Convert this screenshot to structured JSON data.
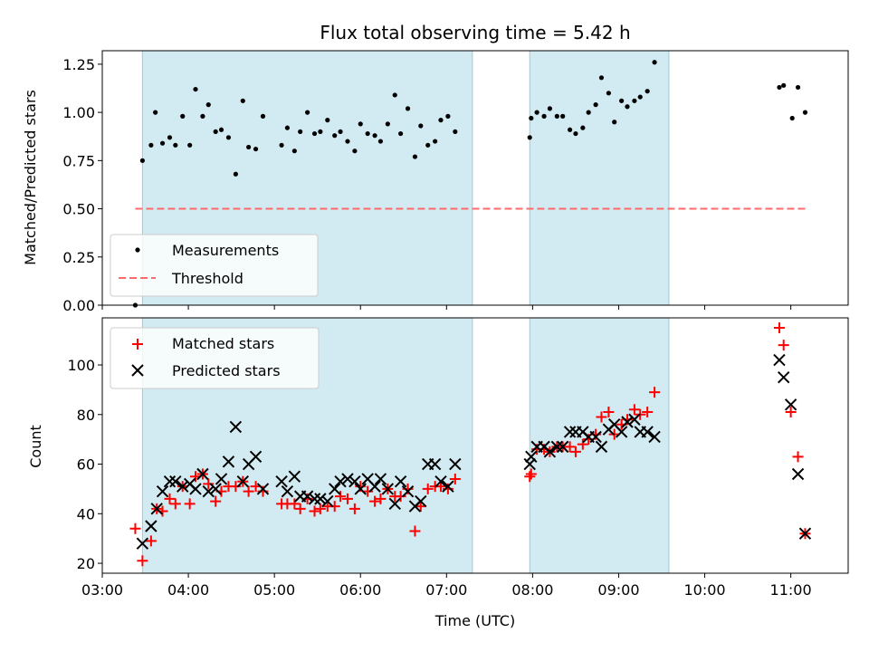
{
  "chart_data": [
    {
      "type": "scatter",
      "title": "Flux total observing time = 5.42 h",
      "xlabel": "",
      "ylabel": "Matched/Predicted stars",
      "xlim": [
        "03:00",
        "11:40"
      ],
      "ylim": [
        0,
        1.32
      ],
      "yticks": [
        "0.00",
        "0.25",
        "0.50",
        "0.75",
        "1.00",
        "1.25"
      ],
      "shaded_intervals": [
        [
          "03:28",
          "07:18"
        ],
        [
          "07:58",
          "09:35"
        ]
      ],
      "shade_color": "#add8e6",
      "legend": {
        "position": "lower-left",
        "entries": [
          "Measurements",
          "Threshold"
        ]
      },
      "series": [
        {
          "name": "Measurements",
          "marker": "dot",
          "color": "#000000",
          "points": [
            [
              "03:23",
              0.0
            ],
            [
              "03:28",
              0.75
            ],
            [
              "03:34",
              0.83
            ],
            [
              "03:37",
              1.0
            ],
            [
              "03:42",
              0.84
            ],
            [
              "03:47",
              0.87
            ],
            [
              "03:51",
              0.83
            ],
            [
              "03:56",
              0.98
            ],
            [
              "04:01",
              0.83
            ],
            [
              "04:05",
              1.12
            ],
            [
              "04:10",
              0.98
            ],
            [
              "04:14",
              1.04
            ],
            [
              "04:19",
              0.9
            ],
            [
              "04:23",
              0.91
            ],
            [
              "04:28",
              0.87
            ],
            [
              "04:33",
              0.68
            ],
            [
              "04:38",
              1.06
            ],
            [
              "04:42",
              0.82
            ],
            [
              "04:47",
              0.81
            ],
            [
              "04:52",
              0.98
            ],
            [
              "05:05",
              0.83
            ],
            [
              "05:09",
              0.92
            ],
            [
              "05:14",
              0.8
            ],
            [
              "05:18",
              0.9
            ],
            [
              "05:23",
              1.0
            ],
            [
              "05:28",
              0.89
            ],
            [
              "05:32",
              0.9
            ],
            [
              "05:37",
              0.96
            ],
            [
              "05:42",
              0.88
            ],
            [
              "05:46",
              0.9
            ],
            [
              "05:51",
              0.85
            ],
            [
              "05:56",
              0.8
            ],
            [
              "06:00",
              0.94
            ],
            [
              "06:05",
              0.89
            ],
            [
              "06:10",
              0.88
            ],
            [
              "06:14",
              0.85
            ],
            [
              "06:19",
              0.94
            ],
            [
              "06:24",
              1.09
            ],
            [
              "06:28",
              0.89
            ],
            [
              "06:33",
              1.02
            ],
            [
              "06:38",
              0.77
            ],
            [
              "06:42",
              0.93
            ],
            [
              "06:47",
              0.83
            ],
            [
              "06:52",
              0.85
            ],
            [
              "06:56",
              0.96
            ],
            [
              "07:01",
              0.98
            ],
            [
              "07:06",
              0.9
            ],
            [
              "07:58",
              0.87
            ],
            [
              "07:59",
              0.97
            ],
            [
              "08:03",
              1.0
            ],
            [
              "08:08",
              0.98
            ],
            [
              "08:12",
              1.02
            ],
            [
              "08:17",
              0.98
            ],
            [
              "08:21",
              0.98
            ],
            [
              "08:26",
              0.91
            ],
            [
              "08:30",
              0.89
            ],
            [
              "08:35",
              0.92
            ],
            [
              "08:39",
              1.0
            ],
            [
              "08:44",
              1.04
            ],
            [
              "08:48",
              1.18
            ],
            [
              "08:53",
              1.1
            ],
            [
              "08:57",
              0.95
            ],
            [
              "09:02",
              1.06
            ],
            [
              "09:06",
              1.03
            ],
            [
              "09:11",
              1.06
            ],
            [
              "09:15",
              1.08
            ],
            [
              "09:20",
              1.11
            ],
            [
              "09:25",
              1.26
            ],
            [
              "10:52",
              1.13
            ],
            [
              "10:55",
              1.14
            ],
            [
              "11:01",
              0.97
            ],
            [
              "11:05",
              1.13
            ],
            [
              "11:10",
              1.0
            ]
          ]
        },
        {
          "name": "Threshold",
          "style": "dashed",
          "color": "#ff6b6b",
          "points": [
            [
              "03:23",
              0.5
            ],
            [
              "11:10",
              0.5
            ]
          ]
        }
      ]
    },
    {
      "type": "scatter",
      "title": "",
      "xlabel": "Time (UTC)",
      "ylabel": "Count",
      "xticks": [
        "03:00",
        "04:00",
        "05:00",
        "06:00",
        "07:00",
        "08:00",
        "09:00",
        "10:00",
        "11:00"
      ],
      "xlim": [
        "03:00",
        "11:40"
      ],
      "ylim": [
        16,
        119
      ],
      "yticks": [
        "20",
        "40",
        "60",
        "80",
        "100"
      ],
      "shaded_intervals": [
        [
          "03:28",
          "07:18"
        ],
        [
          "07:58",
          "09:35"
        ]
      ],
      "legend": {
        "position": "upper-left",
        "entries": [
          "Matched stars",
          "Predicted stars"
        ]
      },
      "series": [
        {
          "name": "Matched stars",
          "marker": "plus",
          "color": "#ff0000",
          "points": [
            [
              "03:23",
              34
            ],
            [
              "03:28",
              21
            ],
            [
              "03:34",
              29
            ],
            [
              "03:38",
              42
            ],
            [
              "03:42",
              41
            ],
            [
              "03:47",
              46
            ],
            [
              "03:51",
              44
            ],
            [
              "03:56",
              51
            ],
            [
              "04:01",
              44
            ],
            [
              "04:05",
              55
            ],
            [
              "04:10",
              56
            ],
            [
              "04:14",
              52
            ],
            [
              "04:19",
              45
            ],
            [
              "04:23",
              49
            ],
            [
              "04:28",
              51
            ],
            [
              "04:33",
              51
            ],
            [
              "04:38",
              53
            ],
            [
              "04:42",
              49
            ],
            [
              "04:47",
              51
            ],
            [
              "04:52",
              49
            ],
            [
              "05:05",
              44
            ],
            [
              "05:09",
              44
            ],
            [
              "05:14",
              44
            ],
            [
              "05:18",
              42
            ],
            [
              "05:23",
              46
            ],
            [
              "05:28",
              41
            ],
            [
              "05:32",
              42
            ],
            [
              "05:37",
              43
            ],
            [
              "05:42",
              43
            ],
            [
              "05:46",
              47
            ],
            [
              "05:51",
              46
            ],
            [
              "05:56",
              42
            ],
            [
              "06:00",
              51
            ],
            [
              "06:05",
              49
            ],
            [
              "06:10",
              45
            ],
            [
              "06:14",
              46
            ],
            [
              "06:19",
              50
            ],
            [
              "06:24",
              47
            ],
            [
              "06:28",
              47
            ],
            [
              "06:33",
              50
            ],
            [
              "06:38",
              33
            ],
            [
              "06:42",
              43
            ],
            [
              "06:47",
              50
            ],
            [
              "06:52",
              51
            ],
            [
              "06:56",
              51
            ],
            [
              "07:01",
              50
            ],
            [
              "07:06",
              54
            ],
            [
              "07:58",
              55
            ],
            [
              "07:59",
              56
            ],
            [
              "08:03",
              66
            ],
            [
              "08:08",
              66
            ],
            [
              "08:12",
              65
            ],
            [
              "08:17",
              67
            ],
            [
              "08:21",
              67
            ],
            [
              "08:26",
              67
            ],
            [
              "08:30",
              65
            ],
            [
              "08:35",
              68
            ],
            [
              "08:39",
              70
            ],
            [
              "08:44",
              72
            ],
            [
              "08:48",
              79
            ],
            [
              "08:53",
              81
            ],
            [
              "08:57",
              72
            ],
            [
              "09:02",
              76
            ],
            [
              "09:06",
              78
            ],
            [
              "09:11",
              82
            ],
            [
              "09:15",
              80
            ],
            [
              "09:20",
              81
            ],
            [
              "09:25",
              89
            ],
            [
              "10:52",
              115
            ],
            [
              "10:55",
              108
            ],
            [
              "11:00",
              81
            ],
            [
              "11:05",
              63
            ],
            [
              "11:10",
              32
            ]
          ]
        },
        {
          "name": "Predicted stars",
          "marker": "x",
          "color": "#000000",
          "points": [
            [
              "03:28",
              28
            ],
            [
              "03:34",
              35
            ],
            [
              "03:38",
              42
            ],
            [
              "03:42",
              49
            ],
            [
              "03:47",
              53
            ],
            [
              "03:51",
              53
            ],
            [
              "03:56",
              51
            ],
            [
              "04:01",
              52
            ],
            [
              "04:05",
              50
            ],
            [
              "04:10",
              56
            ],
            [
              "04:14",
              49
            ],
            [
              "04:19",
              50
            ],
            [
              "04:23",
              54
            ],
            [
              "04:28",
              61
            ],
            [
              "04:33",
              75
            ],
            [
              "04:38",
              53
            ],
            [
              "04:42",
              60
            ],
            [
              "04:47",
              63
            ],
            [
              "04:52",
              50
            ],
            [
              "05:05",
              53
            ],
            [
              "05:09",
              49
            ],
            [
              "05:14",
              55
            ],
            [
              "05:18",
              47
            ],
            [
              "05:23",
              47
            ],
            [
              "05:28",
              46
            ],
            [
              "05:32",
              46
            ],
            [
              "05:37",
              45
            ],
            [
              "05:42",
              50
            ],
            [
              "05:46",
              53
            ],
            [
              "05:51",
              54
            ],
            [
              "05:56",
              53
            ],
            [
              "06:00",
              50
            ],
            [
              "06:05",
              54
            ],
            [
              "06:10",
              51
            ],
            [
              "06:14",
              54
            ],
            [
              "06:19",
              50
            ],
            [
              "06:24",
              44
            ],
            [
              "06:28",
              53
            ],
            [
              "06:33",
              49
            ],
            [
              "06:38",
              43
            ],
            [
              "06:42",
              45
            ],
            [
              "06:47",
              60
            ],
            [
              "06:52",
              60
            ],
            [
              "06:56",
              53
            ],
            [
              "07:01",
              51
            ],
            [
              "07:06",
              60
            ],
            [
              "07:58",
              60
            ],
            [
              "07:59",
              63
            ],
            [
              "08:03",
              67
            ],
            [
              "08:08",
              67
            ],
            [
              "08:12",
              65
            ],
            [
              "08:17",
              67
            ],
            [
              "08:21",
              67
            ],
            [
              "08:26",
              73
            ],
            [
              "08:30",
              73
            ],
            [
              "08:35",
              73
            ],
            [
              "08:39",
              71
            ],
            [
              "08:44",
              71
            ],
            [
              "08:48",
              67
            ],
            [
              "08:53",
              74
            ],
            [
              "08:57",
              76
            ],
            [
              "09:02",
              73
            ],
            [
              "09:06",
              77
            ],
            [
              "09:11",
              78
            ],
            [
              "09:15",
              73
            ],
            [
              "09:20",
              73
            ],
            [
              "09:25",
              71
            ],
            [
              "10:52",
              102
            ],
            [
              "10:55",
              95
            ],
            [
              "11:00",
              84
            ],
            [
              "11:05",
              56
            ],
            [
              "11:10",
              32
            ]
          ]
        }
      ]
    }
  ]
}
